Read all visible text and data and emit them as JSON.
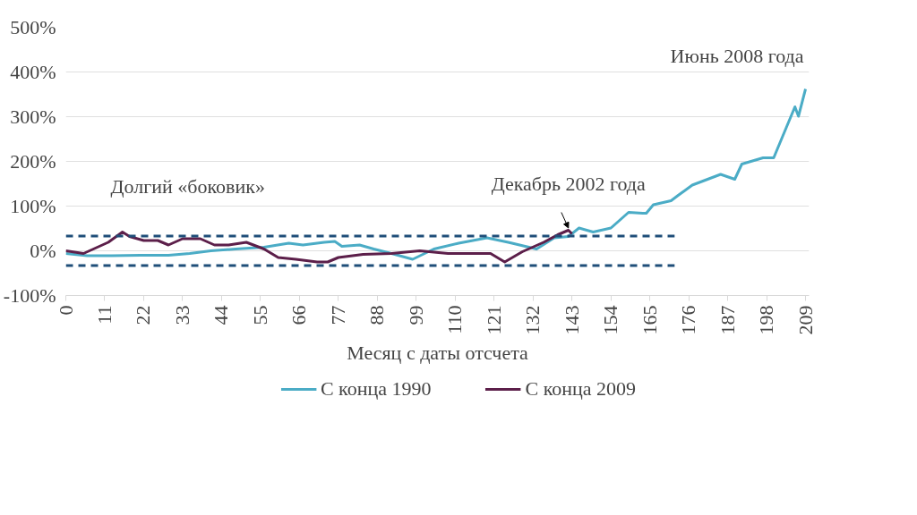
{
  "chart_data": {
    "type": "line",
    "xlabel": "Месяц с даты отсчета",
    "xlim": [
      0,
      210
    ],
    "xticks": [
      0,
      11,
      22,
      33,
      44,
      55,
      66,
      77,
      88,
      99,
      110,
      121,
      132,
      143,
      154,
      165,
      176,
      187,
      198,
      209
    ],
    "ylim": [
      -100,
      500
    ],
    "yticks": [
      {
        "value": -100,
        "label": "-100%"
      },
      {
        "value": 0,
        "label": "0%"
      },
      {
        "value": 100,
        "label": "100%"
      },
      {
        "value": 200,
        "label": "200%"
      },
      {
        "value": 300,
        "label": "300%"
      },
      {
        "value": 400,
        "label": "400%"
      },
      {
        "value": 500,
        "label": "500%"
      }
    ],
    "grid": "y",
    "legend": "bottom",
    "line_style": "solid",
    "marker": "none",
    "series": [
      {
        "name": "С конца 1990",
        "color": "#4bacc6",
        "x": [
          0,
          6,
          13,
          21,
          29,
          35,
          41,
          48,
          56,
          63,
          67,
          73,
          76,
          78,
          83,
          87,
          92,
          98,
          104,
          111,
          119,
          125,
          133,
          138,
          142,
          145,
          149,
          154,
          159,
          163,
          164,
          166,
          171,
          173,
          177,
          185,
          189,
          191,
          197,
          200,
          202,
          206,
          207,
          209
        ],
        "values": [
          -6,
          -11,
          -11,
          -10,
          -10,
          -6,
          0,
          4,
          8,
          17,
          13,
          19,
          21,
          10,
          13,
          4,
          -6,
          -19,
          4,
          17,
          29,
          19,
          4,
          29,
          32,
          51,
          42,
          51,
          86,
          84,
          84,
          103,
          112,
          124,
          147,
          171,
          160,
          194,
          208,
          208,
          246,
          322,
          301,
          362
        ]
      },
      {
        "name": "С конца 2009",
        "color": "#5c1f4a",
        "x": [
          0,
          5,
          12,
          16,
          18,
          22,
          26,
          29,
          33,
          38,
          42,
          46,
          51,
          56,
          60,
          65,
          71,
          74,
          77,
          84,
          92,
          100,
          108,
          120,
          124,
          129,
          135,
          139,
          142,
          143
        ],
        "values": [
          0,
          -6,
          19,
          42,
          32,
          23,
          23,
          13,
          27,
          27,
          13,
          13,
          19,
          4,
          -15,
          -19,
          -25,
          -25,
          -15,
          -8,
          -6,
          0,
          -6,
          -6,
          -25,
          -2,
          19,
          36,
          46,
          38
        ]
      },
      {
        "color": "#1f4e79",
        "line_style": "dashed",
        "x": [
          0,
          172
        ],
        "values": [
          33,
          33
        ]
      },
      {
        "color": "#1f4e79",
        "line_style": "dashed",
        "x": [
          0,
          172
        ],
        "values": [
          -33,
          -33
        ]
      }
    ],
    "annotations": [
      "Долгий «боковик»",
      {
        "text": "Декабрь 2002 года",
        "x": 142,
        "y": 46
      },
      {
        "text": "Июнь 2008 года",
        "x": 209,
        "y": 362
      }
    ]
  }
}
